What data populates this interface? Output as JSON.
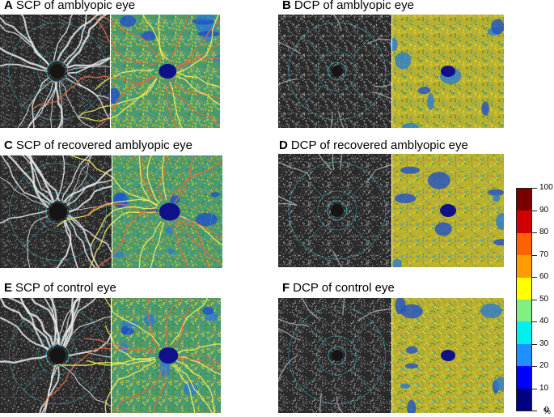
{
  "panels": [
    {
      "letter": "A",
      "title": "SCP of amblyopic eye"
    },
    {
      "letter": "B",
      "title": "DCP of amblyopic eye"
    },
    {
      "letter": "C",
      "title": "SCP of recovered amblyopic eye"
    },
    {
      "letter": "D",
      "title": "DCP of recovered amblyopic eye"
    },
    {
      "letter": "E",
      "title": "SCP of control eye"
    },
    {
      "letter": "F",
      "title": "DCP of control eye"
    }
  ],
  "colorbar": {
    "ticks": [
      "100",
      "90",
      "80",
      "70",
      "60",
      "50",
      "40",
      "30",
      "20",
      "10",
      "0"
    ],
    "unit": "%",
    "colors": [
      "#7a0000",
      "#d00000",
      "#ff6000",
      "#ff9c00",
      "#ffff00",
      "#80f080",
      "#00f0f0",
      "#1f90ff",
      "#0000ff",
      "#000080"
    ]
  }
}
